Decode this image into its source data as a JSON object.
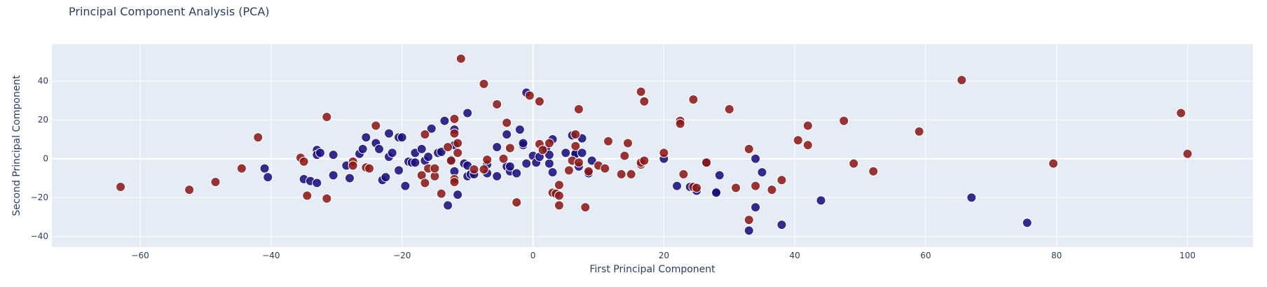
{
  "chart_data": {
    "type": "scatter",
    "title": "Principal Component Analysis (PCA)",
    "xlabel": "First Principal Component",
    "ylabel": "Second Principal Component",
    "xlim": [
      -73.5,
      110
    ],
    "ylim": [
      -45.5,
      59
    ],
    "x_ticks": [
      -60,
      -40,
      -20,
      0,
      20,
      40,
      60,
      80,
      100
    ],
    "y_ticks": [
      -40,
      -20,
      0,
      20,
      40
    ],
    "grid": true,
    "colors": {
      "plot_bg": "#e5ecf6",
      "grid": "#ffffff",
      "series_a": "#1a0f7a",
      "series_b": "#8b1a1a",
      "marker_edge": "#ffffff"
    },
    "series": [
      {
        "color": "#1a0f7a",
        "points": [
          [
            -41,
            -5
          ],
          [
            -40.5,
            -9.5
          ],
          [
            -35,
            -10.5
          ],
          [
            -34,
            -11.5
          ],
          [
            -33,
            -12.5
          ],
          [
            -33,
            4.5
          ],
          [
            -33,
            2
          ],
          [
            -32.5,
            3
          ],
          [
            -30.5,
            2
          ],
          [
            -30.5,
            -8.5
          ],
          [
            -28.5,
            -3.5
          ],
          [
            -28,
            -10
          ],
          [
            -26.5,
            2.5
          ],
          [
            -26,
            5
          ],
          [
            -25.5,
            11
          ],
          [
            -24,
            8
          ],
          [
            -23.5,
            5
          ],
          [
            -23,
            -11
          ],
          [
            -22.5,
            -9.5
          ],
          [
            -22,
            13
          ],
          [
            -22,
            1
          ],
          [
            -21.5,
            3
          ],
          [
            -20.5,
            11
          ],
          [
            -20.5,
            -6
          ],
          [
            -20,
            11
          ],
          [
            -19.5,
            -14
          ],
          [
            -19,
            -1.5
          ],
          [
            -18.5,
            -2
          ],
          [
            -18,
            3
          ],
          [
            -18,
            -2
          ],
          [
            -17,
            5
          ],
          [
            -16.5,
            -1
          ],
          [
            -16,
            1
          ],
          [
            -15.5,
            15.5
          ],
          [
            -14.5,
            3
          ],
          [
            -14,
            3.5
          ],
          [
            -13.5,
            19.5
          ],
          [
            -13,
            -24
          ],
          [
            -12.5,
            -0.5
          ],
          [
            -12,
            7
          ],
          [
            -12,
            15
          ],
          [
            -12,
            -6.5
          ],
          [
            -11.5,
            -18.5
          ],
          [
            -10.5,
            -2.5
          ],
          [
            -10,
            -9
          ],
          [
            -10,
            23.5
          ],
          [
            -10,
            -3.5
          ],
          [
            -9.5,
            -8
          ],
          [
            -9,
            -8
          ],
          [
            -7,
            -3
          ],
          [
            -7,
            -7.5
          ],
          [
            -5.5,
            6
          ],
          [
            -5.5,
            -9
          ],
          [
            -4,
            12.5
          ],
          [
            -4,
            -4
          ],
          [
            -3.5,
            -6.5
          ],
          [
            -3.5,
            -4
          ],
          [
            -2.5,
            -7.5
          ],
          [
            -2,
            15
          ],
          [
            -1.5,
            7
          ],
          [
            -1.5,
            8
          ],
          [
            -1,
            34
          ],
          [
            -1,
            -2.5
          ],
          [
            0,
            1.5
          ],
          [
            0.5,
            -2
          ],
          [
            1,
            1
          ],
          [
            2,
            5
          ],
          [
            2.5,
            -2.5
          ],
          [
            2.5,
            2
          ],
          [
            3,
            -7
          ],
          [
            3,
            10
          ],
          [
            5,
            3
          ],
          [
            6,
            12
          ],
          [
            6.5,
            3
          ],
          [
            6.5,
            2.5
          ],
          [
            7,
            -4
          ],
          [
            7.5,
            3
          ],
          [
            7.5,
            10.5
          ],
          [
            8.5,
            -7
          ],
          [
            8.5,
            -7.5
          ],
          [
            9,
            -1
          ],
          [
            20,
            0
          ],
          [
            22,
            -14
          ],
          [
            24,
            -14.5
          ],
          [
            25,
            -16.5
          ],
          [
            26.5,
            -2
          ],
          [
            28,
            -17
          ],
          [
            28,
            -17.5
          ],
          [
            28.5,
            -8.5
          ],
          [
            33,
            -37
          ],
          [
            34,
            0
          ],
          [
            34,
            -25
          ],
          [
            35,
            -7
          ],
          [
            38,
            -34
          ],
          [
            44,
            -21.5
          ],
          [
            67,
            -20
          ],
          [
            75.5,
            -33
          ]
        ]
      },
      {
        "color": "#8b1a1a",
        "points": [
          [
            -63,
            -14.5
          ],
          [
            -52.5,
            -16
          ],
          [
            -48.5,
            -12
          ],
          [
            -44.5,
            -5
          ],
          [
            -42,
            11
          ],
          [
            -35.5,
            0.5
          ],
          [
            -35,
            -1.5
          ],
          [
            -34.5,
            -19
          ],
          [
            -31.5,
            21.5
          ],
          [
            -31.5,
            -20.5
          ],
          [
            -27.5,
            -1.5
          ],
          [
            -27.5,
            -3.5
          ],
          [
            -25.5,
            -4.5
          ],
          [
            -25,
            -5
          ],
          [
            -24,
            17
          ],
          [
            -17,
            -8.5
          ],
          [
            -16.5,
            -12.5
          ],
          [
            -16.5,
            12.5
          ],
          [
            -16,
            -5
          ],
          [
            -15,
            -9
          ],
          [
            -15,
            -5
          ],
          [
            -14,
            -18
          ],
          [
            -13,
            6
          ],
          [
            -12.5,
            -1
          ],
          [
            -12,
            20.5
          ],
          [
            -12,
            13
          ],
          [
            -12,
            -10.5
          ],
          [
            -12,
            -12
          ],
          [
            -11.5,
            3
          ],
          [
            -11.5,
            8
          ],
          [
            -11,
            51.5
          ],
          [
            -9,
            -5.5
          ],
          [
            -7.5,
            38.5
          ],
          [
            -7.5,
            -5.5
          ],
          [
            -7,
            -0.5
          ],
          [
            -5.5,
            28
          ],
          [
            -4.5,
            0
          ],
          [
            -4,
            18.5
          ],
          [
            -3.5,
            5.5
          ],
          [
            -2.5,
            -22.5
          ],
          [
            -0.5,
            32.5
          ],
          [
            1,
            29.5
          ],
          [
            1,
            7.5
          ],
          [
            1.5,
            4.5
          ],
          [
            2.5,
            8
          ],
          [
            3,
            -17.5
          ],
          [
            3.5,
            -18
          ],
          [
            4,
            -24
          ],
          [
            4,
            -19
          ],
          [
            4,
            -13.5
          ],
          [
            5.5,
            -6
          ],
          [
            6,
            -1
          ],
          [
            6.5,
            12.5
          ],
          [
            6.5,
            6.5
          ],
          [
            7,
            -2
          ],
          [
            7,
            25.5
          ],
          [
            8,
            -25
          ],
          [
            8.5,
            -6.5
          ],
          [
            10,
            -3.5
          ],
          [
            11,
            -5
          ],
          [
            11.5,
            9
          ],
          [
            13.5,
            -8
          ],
          [
            14,
            1.5
          ],
          [
            14.5,
            8
          ],
          [
            15,
            -8
          ],
          [
            16.5,
            34.5
          ],
          [
            16.5,
            -3
          ],
          [
            16.5,
            -2
          ],
          [
            17,
            29.5
          ],
          [
            17,
            -1
          ],
          [
            20,
            3
          ],
          [
            22.5,
            19.5
          ],
          [
            22.5,
            18
          ],
          [
            23,
            -8
          ],
          [
            24.5,
            -14.5
          ],
          [
            24.5,
            30.5
          ],
          [
            25,
            -15
          ],
          [
            26.5,
            -2
          ],
          [
            30,
            25.5
          ],
          [
            31,
            -15
          ],
          [
            33,
            5
          ],
          [
            33,
            -31.5
          ],
          [
            34,
            -14
          ],
          [
            36.5,
            -16
          ],
          [
            38,
            -11
          ],
          [
            40.5,
            9.5
          ],
          [
            42,
            17
          ],
          [
            42,
            7
          ],
          [
            47.5,
            19.5
          ],
          [
            49,
            -2.5
          ],
          [
            52,
            -6.5
          ],
          [
            59,
            14
          ],
          [
            65.5,
            40.5
          ],
          [
            79.5,
            -2.5
          ],
          [
            99,
            23.5
          ],
          [
            100,
            2.5
          ]
        ]
      }
    ]
  }
}
